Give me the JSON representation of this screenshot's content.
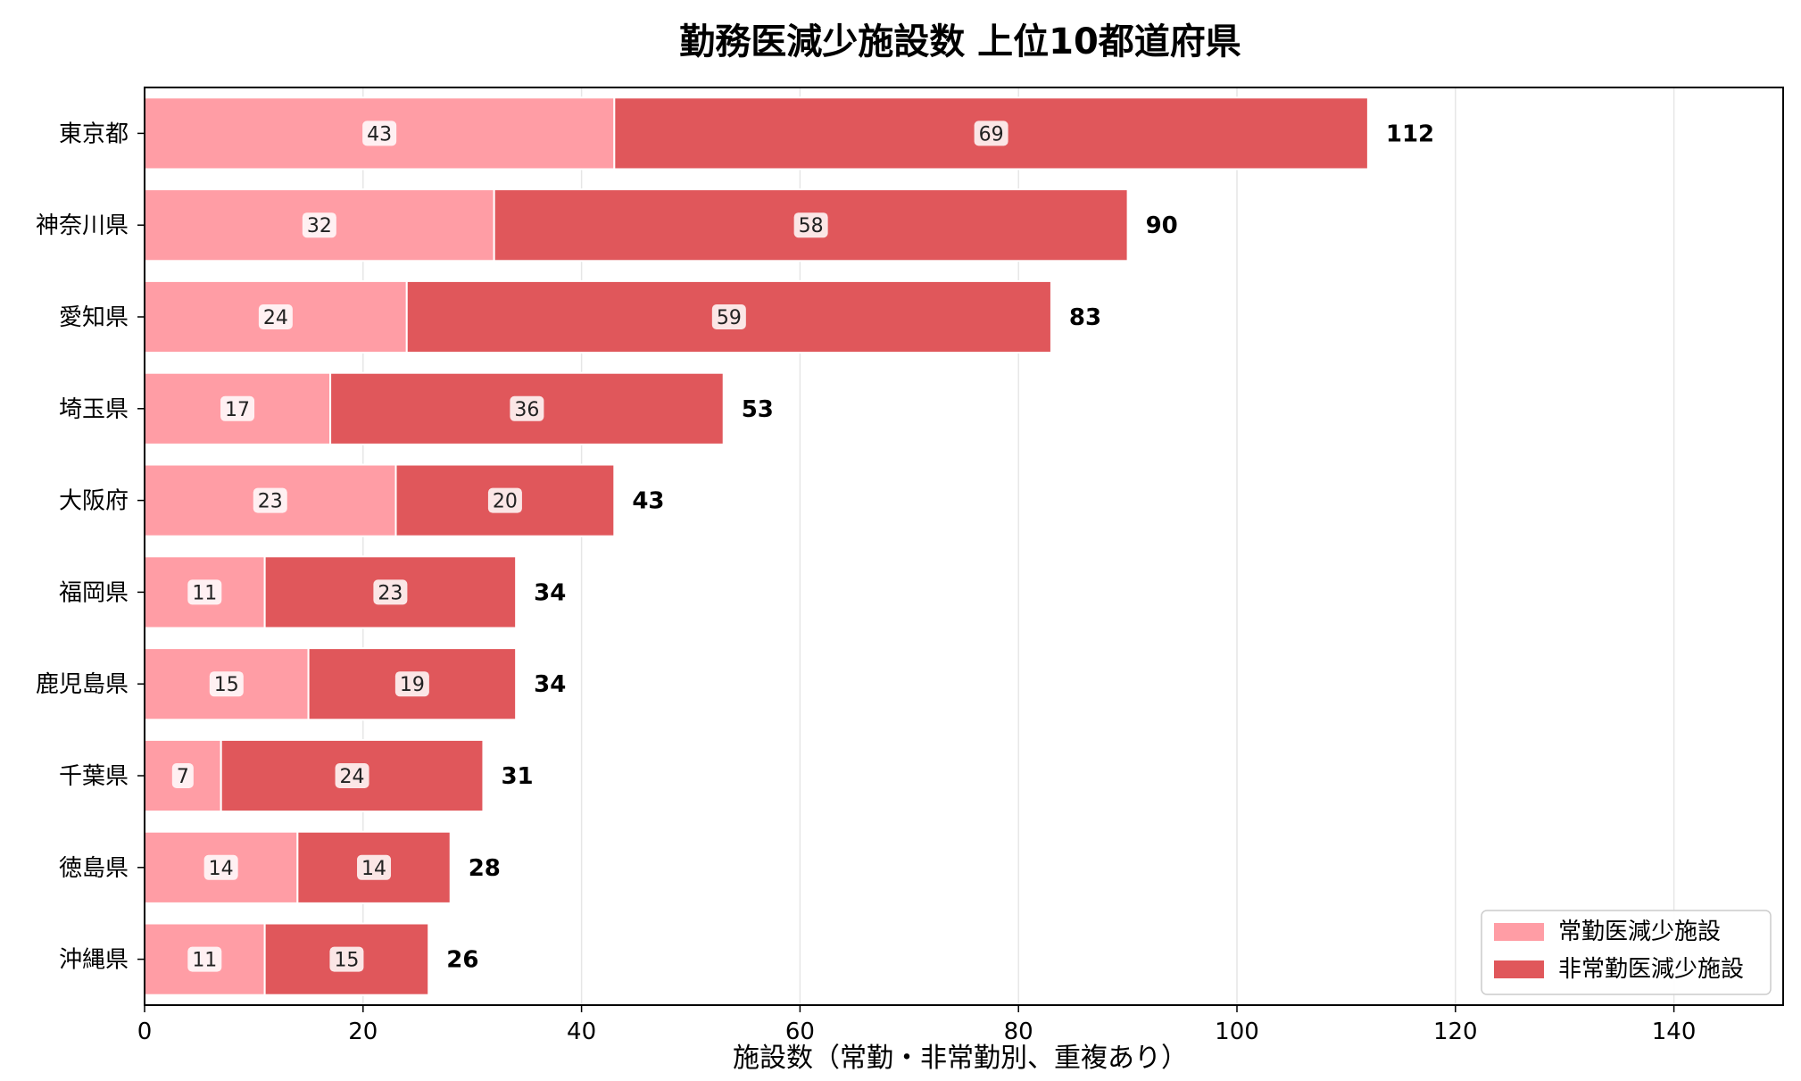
{
  "chart_data": {
    "type": "bar",
    "orientation": "horizontal",
    "stacked": true,
    "title": "勤務医減少施設数 上位10都道府県",
    "xlabel": "施設数（常勤・非常勤別、重複あり）",
    "ylabel": "",
    "xlim": [
      0,
      150
    ],
    "xticks": [
      0,
      20,
      40,
      60,
      80,
      100,
      120,
      140
    ],
    "grid": "vertical",
    "legend_position": "bottom-right",
    "categories": [
      "東京都",
      "神奈川県",
      "愛知県",
      "埼玉県",
      "大阪府",
      "福岡県",
      "鹿児島県",
      "千葉県",
      "徳島県",
      "沖縄県"
    ],
    "series": [
      {
        "name": "常勤医減少施設",
        "color": "#FF9DA5",
        "values": [
          43,
          32,
          24,
          17,
          23,
          11,
          15,
          7,
          14,
          11
        ]
      },
      {
        "name": "非常勤医減少施設",
        "color": "#E0575B",
        "values": [
          69,
          58,
          59,
          36,
          20,
          23,
          19,
          24,
          14,
          15
        ]
      }
    ],
    "totals": [
      112,
      90,
      83,
      53,
      43,
      34,
      34,
      31,
      28,
      26
    ]
  }
}
